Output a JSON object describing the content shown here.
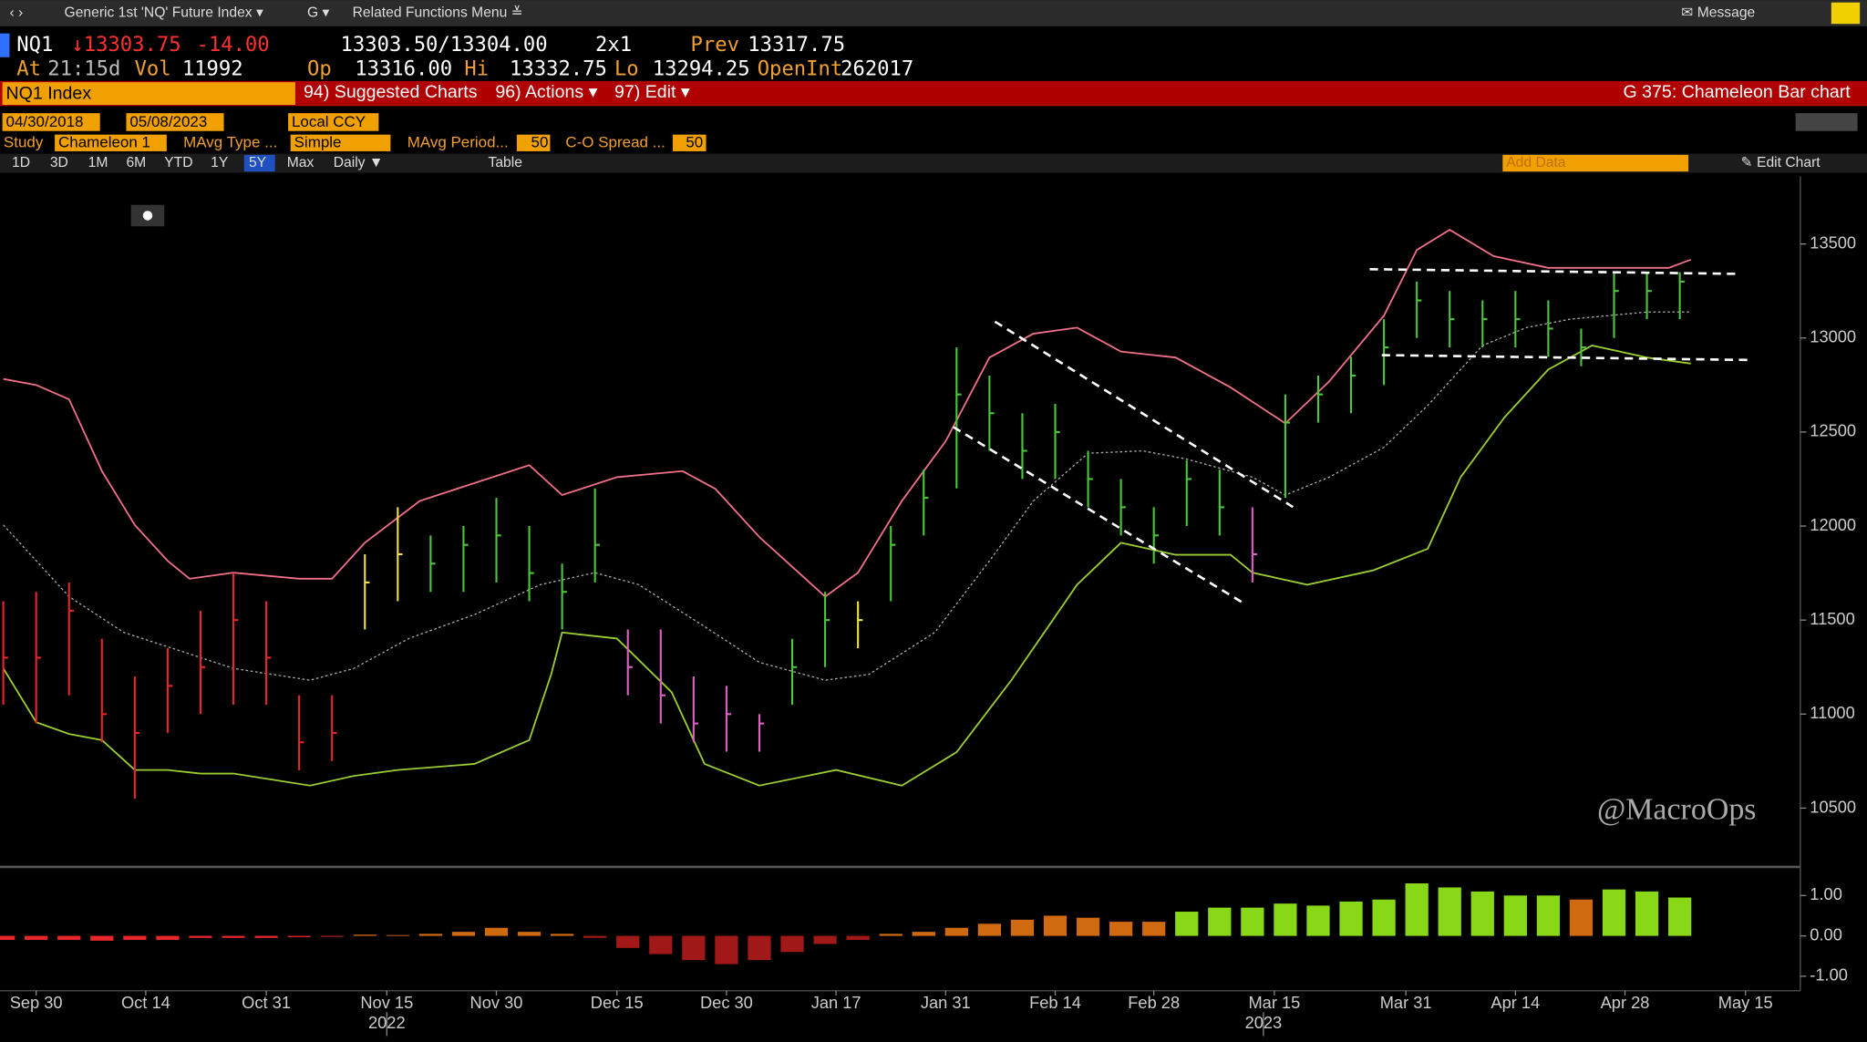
{
  "toolbar": {
    "security": "Generic 1st 'NQ' Future Index ▾",
    "g_menu": "G ▾",
    "related": "Related Functions Menu ≚",
    "message": "✉ Message"
  },
  "quote": {
    "ticker": "NQ1",
    "last": "↓13303.75",
    "change": "-14.00",
    "bid_ask": "13303.50/13304.00",
    "size": "2x1",
    "prev_label": "Prev",
    "prev": "13317.75",
    "at_label": "At",
    "time": "21:15d",
    "vol_label": "Vol",
    "volume": "11992",
    "open_label": "Op",
    "open": "13316.00",
    "high_label": "Hi",
    "high": "13332.75",
    "low_label": "Lo",
    "low": "13294.25",
    "openint_label": "OpenInt",
    "openint": "262017"
  },
  "menu_bar": {
    "security": "NQ1 Index",
    "suggested": "94) Suggested Charts",
    "actions": "96) Actions ▾",
    "edit": "97) Edit ▾",
    "function": "G 375: Chameleon Bar chart"
  },
  "controls": {
    "start_date": "04/30/2018",
    "end_date": "05/08/2023",
    "currency": "Local CCY",
    "study_label": "Study",
    "study": "Chameleon 1",
    "mavg_type_label": "MAvg Type ...",
    "mavg_type": "Simple",
    "mavg_period_label": "MAvg Period...",
    "mavg_period": "50",
    "co_spread_label": "C-O Spread ...",
    "co_spread": "50",
    "ranges": [
      "1D",
      "3D",
      "1M",
      "6M",
      "YTD",
      "1Y",
      "5Y",
      "Max",
      "Daily ▼"
    ],
    "active_range": "5Y",
    "table": "Table",
    "add_data": "Add Data",
    "edit_chart": "✎ Edit Chart"
  },
  "chart_data": [
    {
      "type": "ohlc",
      "watermark": "@MacroOps",
      "x": [
        -3,
        0,
        3,
        6,
        9,
        12,
        15,
        18,
        21,
        24,
        27,
        30,
        33,
        36,
        39,
        42,
        45,
        48,
        51,
        54,
        57,
        60,
        63,
        66,
        69,
        72,
        75,
        78,
        81,
        84,
        87,
        90,
        93,
        96,
        99,
        102,
        105,
        108,
        111,
        114,
        117,
        120,
        123,
        126,
        129,
        132,
        135,
        138,
        141,
        144,
        147,
        150
      ],
      "high": [
        11600,
        11650,
        11700,
        11400,
        11200,
        11350,
        11550,
        11750,
        11600,
        11100,
        11100,
        11850,
        12100,
        11950,
        12000,
        12150,
        12000,
        11800,
        12200,
        11450,
        11450,
        11200,
        11150,
        11000,
        11400,
        11650,
        11600,
        12000,
        12300,
        12950,
        12800,
        12600,
        12650,
        12400,
        12250,
        12100,
        12350,
        12300,
        12100,
        12700,
        12800,
        12900,
        13100,
        13300,
        13250,
        13200,
        13250,
        13200,
        13050,
        13350,
        13350,
        13350
      ],
      "low": [
        11050,
        10950,
        11100,
        10850,
        10550,
        10900,
        11000,
        11050,
        11050,
        10700,
        10750,
        11450,
        11600,
        11650,
        11650,
        11700,
        11600,
        11450,
        11700,
        11100,
        10950,
        10850,
        10800,
        10800,
        11050,
        11250,
        11350,
        11600,
        11950,
        12200,
        12400,
        12250,
        12250,
        12100,
        11950,
        11800,
        12000,
        11950,
        11700,
        12150,
        12550,
        12600,
        12750,
        13000,
        12950,
        12950,
        12950,
        12900,
        12850,
        13000,
        13100,
        13100
      ],
      "close": [
        11300,
        11300,
        11550,
        11000,
        10900,
        11150,
        11250,
        11500,
        11300,
        10850,
        10900,
        11700,
        11850,
        11800,
        11900,
        11950,
        11750,
        11650,
        11900,
        11250,
        11100,
        10950,
        11000,
        10950,
        11250,
        11500,
        11500,
        11900,
        12150,
        12700,
        12600,
        12400,
        12500,
        12250,
        12100,
        11950,
        12250,
        12100,
        11850,
        12550,
        12700,
        12800,
        12950,
        13200,
        13100,
        13100,
        13100,
        13050,
        12950,
        13250,
        13250,
        13300
      ],
      "bar_colors": [
        "#e8262b",
        "#e8262b",
        "#e8262b",
        "#e8262b",
        "#e8262b",
        "#e8262b",
        "#e8262b",
        "#e8262b",
        "#e8262b",
        "#e8262b",
        "#e8262b",
        "#f0e040",
        "#f0e040",
        "#4cc83c",
        "#4cc83c",
        "#4cc83c",
        "#4cc83c",
        "#4cc83c",
        "#4cc83c",
        "#e060c8",
        "#e060c8",
        "#e060c8",
        "#e060c8",
        "#e060c8",
        "#4cc83c",
        "#4cc83c",
        "#f0e040",
        "#4cc83c",
        "#4cc83c",
        "#4cc83c",
        "#4cc83c",
        "#4cc83c",
        "#4cc83c",
        "#4cc83c",
        "#4cc83c",
        "#4cc83c",
        "#4cc83c",
        "#4cc83c",
        "#e060c8",
        "#4cc83c",
        "#4cc83c",
        "#4cc83c",
        "#4cc83c",
        "#4cc83c",
        "#4cc83c",
        "#4cc83c",
        "#4cc83c",
        "#4cc83c",
        "#4cc83c",
        "#4cc83c",
        "#4cc83c",
        "#4cc83c"
      ],
      "lines": [
        {
          "color": "#f07088",
          "style": "solid",
          "x": [
            -3,
            0,
            3,
            6,
            9,
            12,
            14,
            18,
            24,
            27,
            30,
            35,
            40,
            45,
            48,
            53,
            59,
            62,
            66,
            72,
            75,
            79,
            83,
            87,
            91,
            95,
            99,
            104,
            109,
            114,
            118,
            123,
            126,
            129,
            133,
            138,
            143,
            149,
            151
          ],
          "values": [
            12782,
            12750,
            12674,
            12292,
            12006,
            11815,
            11720,
            11752,
            11720,
            11720,
            11911,
            12133,
            12229,
            12324,
            12165,
            12260,
            12292,
            12197,
            11942,
            11625,
            11752,
            12133,
            12451,
            12896,
            13023,
            13055,
            12928,
            12896,
            12737,
            12546,
            12769,
            13119,
            13468,
            13576,
            13436,
            13373,
            13373,
            13373,
            13417
          ]
        },
        {
          "color": "#aaaaaa",
          "style": "dotted",
          "x": [
            -3,
            3,
            8,
            13,
            18,
            25,
            29,
            34,
            40,
            46,
            51,
            55,
            61,
            66,
            72,
            76,
            82,
            87,
            91,
            96,
            101,
            105,
            111,
            114,
            118,
            123,
            127,
            132,
            136,
            140,
            147,
            151
          ],
          "values": [
            12006,
            11625,
            11434,
            11339,
            11243,
            11180,
            11243,
            11402,
            11529,
            11688,
            11752,
            11688,
            11466,
            11275,
            11180,
            11211,
            11434,
            11815,
            12133,
            12387,
            12400,
            12356,
            12260,
            12165,
            12260,
            12419,
            12642,
            12960,
            13055,
            13100,
            13138,
            13138
          ]
        },
        {
          "color": "#9acd32",
          "style": "solid",
          "x": [
            -3,
            0,
            3,
            6,
            9,
            12,
            15,
            18,
            25,
            29,
            33,
            40,
            45,
            47,
            48,
            53,
            58,
            61,
            66,
            73,
            79,
            84,
            89,
            95,
            99,
            104,
            109,
            111,
            116,
            122,
            127,
            130,
            134,
            138,
            142,
            147,
            151
          ],
          "values": [
            11243,
            10957,
            10894,
            10862,
            10703,
            10703,
            10684,
            10684,
            10620,
            10671,
            10703,
            10735,
            10862,
            11211,
            11434,
            11402,
            11116,
            10735,
            10620,
            10703,
            10620,
            10798,
            11180,
            11688,
            11911,
            11847,
            11847,
            11752,
            11688,
            11764,
            11879,
            12260,
            12578,
            12832,
            12960,
            12896,
            12864
          ]
        }
      ],
      "trendlines": [
        {
          "color": "#ffffff",
          "x": [
            87.5,
            114.7
          ],
          "values": [
            13087,
            12101
          ]
        },
        {
          "color": "#ffffff",
          "x": [
            83.7,
            110.3
          ],
          "values": [
            12527,
            11586
          ]
        },
        {
          "color": "#ffffff",
          "x": [
            121.7,
            155.4
          ],
          "values": [
            13366,
            13341
          ]
        },
        {
          "color": "#ffffff",
          "x": [
            122.8,
            156.5
          ],
          "values": [
            12909,
            12883
          ]
        }
      ],
      "xlim": [
        -3.3,
        161
      ],
      "ylim": [
        10200,
        13860
      ],
      "yticks": [
        10500,
        11000,
        11500,
        12000,
        12500,
        13000,
        13500
      ],
      "xticks": [
        {
          "value": 0,
          "label": "Sep 30"
        },
        {
          "value": 10,
          "label": "Oct 14"
        },
        {
          "value": 21,
          "label": "Oct 31"
        },
        {
          "value": 32,
          "label": "Nov 15"
        },
        {
          "value": 42,
          "label": "Nov 30"
        },
        {
          "value": 53,
          "label": "Dec 15"
        },
        {
          "value": 63,
          "label": "Dec 30"
        },
        {
          "value": 73,
          "label": "Jan 17"
        },
        {
          "value": 83,
          "label": "Jan 31"
        },
        {
          "value": 93,
          "label": "Feb 14"
        },
        {
          "value": 102,
          "label": "Feb 28"
        },
        {
          "value": 113,
          "label": "Mar 15"
        },
        {
          "value": 125,
          "label": "Mar 31"
        },
        {
          "value": 135,
          "label": "Apr 14"
        },
        {
          "value": 145,
          "label": "Apr 28"
        },
        {
          "value": 156,
          "label": "May 15"
        }
      ],
      "x_year_labels": [
        {
          "value": 32,
          "label": "2022"
        },
        {
          "value": 112,
          "label": "2023"
        }
      ],
      "grid": false
    },
    {
      "type": "bar",
      "x": [
        -3,
        0,
        3,
        6,
        9,
        12,
        15,
        18,
        21,
        24,
        27,
        30,
        33,
        36,
        39,
        42,
        45,
        48,
        51,
        54,
        57,
        60,
        63,
        66,
        69,
        72,
        75,
        78,
        81,
        84,
        87,
        90,
        93,
        96,
        99,
        102,
        105,
        108,
        111,
        114,
        117,
        120,
        123,
        126,
        129,
        132,
        135,
        138,
        141,
        144,
        147,
        150
      ],
      "values": [
        -0.1,
        -0.1,
        -0.1,
        -0.12,
        -0.1,
        -0.1,
        -0.05,
        -0.05,
        -0.05,
        -0.03,
        -0.02,
        0.03,
        0.02,
        0.05,
        0.1,
        0.2,
        0.1,
        0.05,
        -0.05,
        -0.3,
        -0.45,
        -0.6,
        -0.7,
        -0.6,
        -0.4,
        -0.2,
        -0.1,
        0.05,
        0.1,
        0.2,
        0.3,
        0.4,
        0.5,
        0.45,
        0.35,
        0.35,
        0.6,
        0.7,
        0.7,
        0.8,
        0.75,
        0.85,
        0.9,
        1.3,
        1.2,
        1.1,
        1.0,
        1.0,
        0.9,
        1.15,
        1.1,
        0.95
      ],
      "bar_colors": [
        "#e8262b",
        "#e8262b",
        "#e8262b",
        "#e8262b",
        "#e8262b",
        "#e8262b",
        "#e8262b",
        "#e8262b",
        "#e8262b",
        "#e8262b",
        "#e8262b",
        "#d06a10",
        "#d06a10",
        "#d06a10",
        "#d06a10",
        "#d06a10",
        "#d06a10",
        "#d06a10",
        "#a01818",
        "#a01818",
        "#a01818",
        "#a01818",
        "#a01818",
        "#a01818",
        "#a01818",
        "#a01818",
        "#a01818",
        "#d06a10",
        "#d06a10",
        "#d06a10",
        "#d06a10",
        "#d06a10",
        "#d06a10",
        "#d06a10",
        "#d06a10",
        "#d06a10",
        "#88d818",
        "#88d818",
        "#88d818",
        "#88d818",
        "#88d818",
        "#88d818",
        "#88d818",
        "#88d818",
        "#88d818",
        "#88d818",
        "#88d818",
        "#88d818",
        "#d06a10",
        "#88d818",
        "#88d818",
        "#88d818"
      ],
      "xlim": [
        -3.3,
        161
      ],
      "ylim": [
        -1.3,
        1.65
      ],
      "yticks": [
        {
          "value": 1,
          "label": "1.00"
        },
        {
          "value": 0,
          "label": "0.00"
        },
        {
          "value": -1,
          "label": "-1.00"
        }
      ]
    }
  ]
}
